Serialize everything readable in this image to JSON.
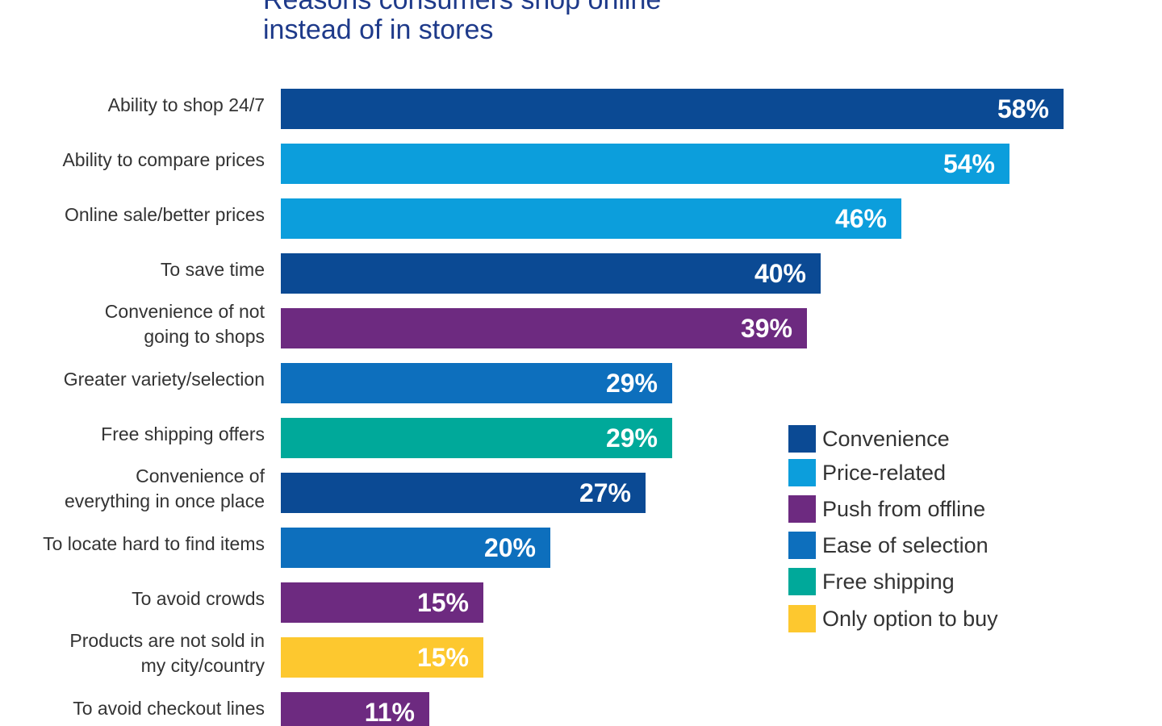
{
  "chart_data": {
    "type": "bar",
    "orientation": "horizontal",
    "title_lines": [
      "Reasons consumers shop online",
      "instead of in stores"
    ],
    "xlim": [
      0,
      58
    ],
    "categories": [
      "Ability to shop 24/7",
      "Ability to compare prices",
      "Online sale/better prices",
      "To save time",
      "Convenience of not\ngoing to shops",
      "Greater variety/selection",
      "Free shipping offers",
      "Convenience of\neverything in once place",
      "To locate hard to find items",
      "To avoid crowds",
      "Products are not sold in\nmy city/country",
      "To avoid checkout lines"
    ],
    "values": [
      58,
      54,
      46,
      40,
      39,
      29,
      29,
      27,
      20,
      15,
      15,
      11
    ],
    "value_labels": [
      "58%",
      "54%",
      "46%",
      "40%",
      "39%",
      "29%",
      "29%",
      "27%",
      "20%",
      "15%",
      "15%",
      "11%"
    ],
    "groups": [
      "Convenience",
      "Price-related",
      "Price-related",
      "Convenience",
      "Push from offline",
      "Ease of selection",
      "Free shipping",
      "Convenience",
      "Ease of selection",
      "Push from offline",
      "Only option to buy",
      "Push from offline"
    ],
    "legend": [
      {
        "name": "Convenience",
        "color": "#0b4a94"
      },
      {
        "name": "Price-related",
        "color": "#0c9edc"
      },
      {
        "name": "Push from offline",
        "color": "#6d2a80"
      },
      {
        "name": "Ease of selection",
        "color": "#0d6fbd"
      },
      {
        "name": "Free shipping",
        "color": "#00a99a"
      },
      {
        "name": "Only option to buy",
        "color": "#fdc82f"
      }
    ],
    "legend_position": "right",
    "grid": false
  }
}
